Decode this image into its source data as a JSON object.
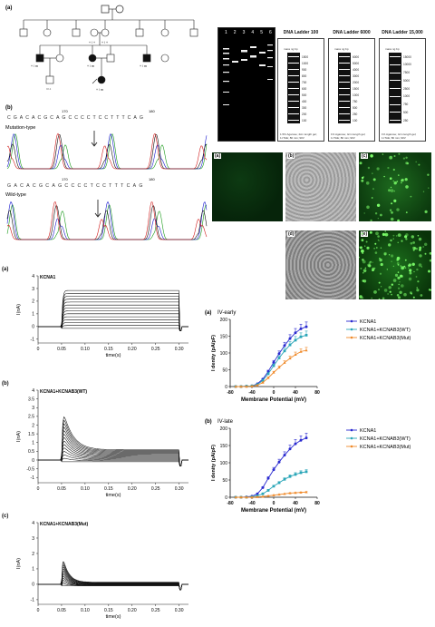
{
  "pedigree": {
    "tag": "(a)",
    "members": [
      {
        "id": "I-1",
        "geno": ""
      },
      {
        "id": "I-2",
        "geno": ""
      },
      {
        "id": "II-1",
        "geno": ""
      },
      {
        "id": "II-2",
        "geno": ""
      },
      {
        "id": "II-3",
        "geno": "+ / +"
      },
      {
        "id": "II-4",
        "geno": "+ / +"
      },
      {
        "id": "II-5",
        "geno": ""
      },
      {
        "id": "II-6",
        "geno": ""
      },
      {
        "id": "III-1",
        "geno": "+ / m"
      },
      {
        "id": "III-2",
        "geno": ""
      },
      {
        "id": "III-3",
        "geno": "+ / m"
      },
      {
        "id": "III-4",
        "geno": ""
      },
      {
        "id": "III-5",
        "geno": "+ / m"
      },
      {
        "id": "III-6",
        "geno": ""
      },
      {
        "id": "IV-1",
        "geno": ""
      },
      {
        "id": "IV-2",
        "geno": "+ / m"
      }
    ]
  },
  "sequencing": {
    "tag": "(b)",
    "mutation_label": "Mutation-type",
    "wildtype_label": "Wild-type",
    "mut_bases": "CGACACGCAGCCCCTCCTTTCAG",
    "wt_bases": "GACACGCAGCCCCTCCTTTCAG",
    "pos_a": "170",
    "pos_b": "180",
    "pos_c": "170",
    "pos_d": "180"
  },
  "gel": {
    "lanes": [
      "1",
      "2",
      "3",
      "4",
      "5",
      "6"
    ],
    "ladders": [
      {
        "title": "DNA Ladder 100",
        "sizes": [
          "1500",
          "1000",
          "900",
          "800",
          "700",
          "600",
          "500",
          "400",
          "300",
          "200",
          "100"
        ],
        "caption": "1.5% Agarose; 4cm length gel; 1×TAE; 80 min; 90V"
      },
      {
        "title": "DNA Ladder 6000",
        "sizes": [
          "6000",
          "5000",
          "4000",
          "3000",
          "2000",
          "1500",
          "1000",
          "750",
          "500",
          "250",
          "100"
        ],
        "caption": "1% Agarose; 4cm length gel; 1×TAE; 80 min; 90V"
      },
      {
        "title": "DNA Ladder 15,000",
        "sizes": [
          "15000",
          "10000",
          "7500",
          "5000",
          "2500",
          "1000",
          "750",
          "500",
          "250"
        ],
        "caption": "1% Agarose; 4cm length gel; 1×TAE; 80 min; 90V"
      }
    ],
    "unit": "mass ng   bp"
  },
  "microscopy": {
    "panels": [
      "(a)",
      "(b)",
      "(c)",
      "(d)",
      "(e)"
    ]
  },
  "traces": {
    "tag_a": "(a)",
    "tag_b": "(b)",
    "tag_c": "(c)",
    "title_a": "KCNA1",
    "title_b": "KCNA1+KCNAB3(WT)",
    "title_c": "KCNA1+KCNAB3(Mut)",
    "ylabel": "I(nA)",
    "xlabel": "time(s)",
    "xticks": [
      "0",
      "0.05",
      "0.10",
      "0.15",
      "0.20",
      "0.25",
      "0.30"
    ],
    "yticks_a": [
      "4",
      "3",
      "2",
      "1",
      "0",
      "-1"
    ],
    "yticks_b": [
      "4",
      "3.5",
      "3",
      "2.5",
      "2",
      "1.5",
      "1",
      "0.5",
      "0",
      "-0.5",
      "-1"
    ],
    "yticks_c": [
      "4",
      "3",
      "2",
      "1",
      "0",
      "-1"
    ]
  },
  "chart_data": [
    {
      "type": "line",
      "tag": "(a)",
      "title": "IV-early",
      "xlabel": "Membrane Potential (mV)",
      "ylabel": "I denity (pA/pF)",
      "xlim": [
        -80,
        80
      ],
      "ylim": [
        0,
        200
      ],
      "xticks": [
        "-80",
        "-40",
        "0",
        "40",
        "80"
      ],
      "yticks": [
        "0",
        "50",
        "100",
        "150",
        "200"
      ],
      "x": [
        -70,
        -60,
        -50,
        -40,
        -30,
        -20,
        -10,
        0,
        10,
        20,
        30,
        40,
        50,
        60
      ],
      "series": [
        {
          "name": "KCNA1",
          "color": "#2a2ad0",
          "marker": "circle",
          "values": [
            0,
            0,
            1,
            2,
            8,
            22,
            45,
            72,
            98,
            122,
            143,
            160,
            172,
            178
          ]
        },
        {
          "name": "KCNA1+KCNAB3(WT)",
          "color": "#2aa6b8",
          "marker": "square",
          "values": [
            0,
            0,
            1,
            2,
            6,
            18,
            38,
            62,
            85,
            106,
            124,
            138,
            148,
            153
          ]
        },
        {
          "name": "KCNA1+KCNAB3(Mut)",
          "color": "#f08a2a",
          "marker": "triangle",
          "values": [
            0,
            0,
            0,
            1,
            4,
            12,
            26,
            42,
            57,
            71,
            84,
            95,
            104,
            108
          ]
        }
      ],
      "legend": "right"
    },
    {
      "type": "line",
      "tag": "(b)",
      "title": "IV-late",
      "xlabel": "Membrane Potential (mV)",
      "ylabel": "I denity (pA/pF)",
      "xlim": [
        -80,
        80
      ],
      "ylim": [
        0,
        200
      ],
      "xticks": [
        "-80",
        "-40",
        "0",
        "40",
        "80"
      ],
      "yticks": [
        "0",
        "50",
        "100",
        "150",
        "200"
      ],
      "x": [
        -70,
        -60,
        -50,
        -40,
        -30,
        -20,
        -10,
        0,
        10,
        20,
        30,
        40,
        50,
        60
      ],
      "series": [
        {
          "name": "KCNA1",
          "color": "#2a2ad0",
          "marker": "circle",
          "values": [
            0,
            0,
            1,
            3,
            10,
            28,
            55,
            80,
            102,
            122,
            140,
            155,
            165,
            172
          ]
        },
        {
          "name": "KCNA1+KCNAB3(WT)",
          "color": "#2aa6b8",
          "marker": "square",
          "values": [
            0,
            0,
            0,
            1,
            4,
            10,
            20,
            32,
            42,
            52,
            60,
            66,
            71,
            74
          ]
        },
        {
          "name": "KCNA1+KCNAB3(Mut)",
          "color": "#f08a2a",
          "marker": "triangle",
          "values": [
            0,
            0,
            0,
            0,
            1,
            2,
            4,
            6,
            8,
            10,
            12,
            13,
            14,
            15
          ]
        }
      ],
      "legend": "right"
    }
  ]
}
